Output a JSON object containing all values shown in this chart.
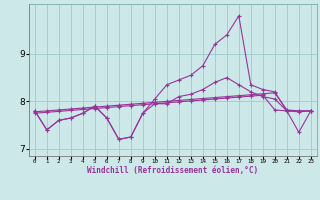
{
  "xlabel": "Windchill (Refroidissement éolien,°C)",
  "x_hours": [
    0,
    1,
    2,
    3,
    4,
    5,
    6,
    7,
    8,
    9,
    10,
    11,
    12,
    13,
    14,
    15,
    16,
    17,
    18,
    19,
    20,
    21,
    22,
    23
  ],
  "line1": [
    7.8,
    7.4,
    7.6,
    7.65,
    7.75,
    7.9,
    7.65,
    7.2,
    7.25,
    7.75,
    8.05,
    8.35,
    8.45,
    8.55,
    8.75,
    9.2,
    9.4,
    9.8,
    8.35,
    8.25,
    8.2,
    7.8,
    7.8,
    7.8
  ],
  "line2": [
    7.8,
    7.4,
    7.6,
    7.65,
    7.75,
    7.9,
    7.65,
    7.2,
    7.25,
    7.75,
    7.95,
    7.95,
    8.1,
    8.15,
    8.25,
    8.4,
    8.5,
    8.35,
    8.2,
    8.1,
    8.05,
    7.8,
    7.35,
    7.8
  ],
  "line3": [
    7.78,
    7.8,
    7.82,
    7.84,
    7.86,
    7.88,
    7.9,
    7.92,
    7.94,
    7.96,
    7.98,
    8.0,
    8.02,
    8.04,
    8.06,
    8.08,
    8.1,
    8.12,
    8.14,
    8.16,
    8.18,
    7.82,
    7.8,
    7.8
  ],
  "line4": [
    7.75,
    7.77,
    7.79,
    7.81,
    7.83,
    7.85,
    7.87,
    7.89,
    7.91,
    7.93,
    7.95,
    7.97,
    7.99,
    8.01,
    8.03,
    8.05,
    8.07,
    8.09,
    8.11,
    8.13,
    7.82,
    7.8,
    7.78,
    7.8
  ],
  "color": "#993399",
  "bg_color": "#cce8e8",
  "grid_color": "#99cccc",
  "ylim": [
    6.85,
    10.05
  ],
  "yticks": [
    7,
    8,
    9
  ],
  "xtick_labels": [
    "0",
    "1",
    "2",
    "3",
    "4",
    "5",
    "6",
    "7",
    "8",
    "9",
    "10",
    "11",
    "12",
    "13",
    "14",
    "15",
    "16",
    "17",
    "18",
    "19",
    "20",
    "21",
    "22",
    "23"
  ]
}
